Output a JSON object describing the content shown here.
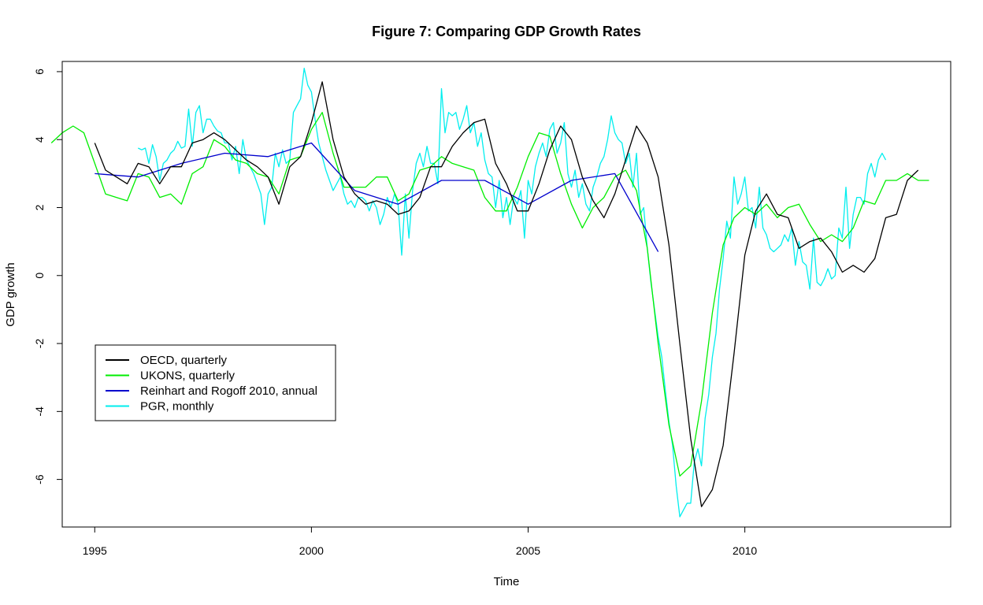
{
  "chart_data": {
    "type": "line",
    "title": "Figure 7: Comparing GDP Growth Rates",
    "xlabel": "Time",
    "ylabel": "GDP growth",
    "xlim": [
      1994.25,
      2014.75
    ],
    "ylim": [
      -7.4,
      6.3
    ],
    "x_ticks": [
      1995,
      2000,
      2005,
      2010
    ],
    "y_ticks": [
      -6,
      -4,
      -2,
      0,
      2,
      4,
      6
    ],
    "grid": false,
    "legend_position": "bottom-left",
    "series": [
      {
        "name": "OECD, quarterly",
        "color": "#000000",
        "start": 1995.0,
        "step": 0.25,
        "values": [
          3.9,
          3.1,
          2.9,
          2.7,
          3.3,
          3.2,
          2.7,
          3.2,
          3.2,
          3.9,
          4.0,
          4.2,
          4.0,
          3.7,
          3.4,
          3.2,
          2.9,
          2.1,
          3.2,
          3.5,
          4.5,
          5.7,
          4.0,
          2.9,
          2.4,
          2.1,
          2.2,
          2.1,
          1.8,
          1.9,
          2.3,
          3.2,
          3.2,
          3.8,
          4.2,
          4.5,
          4.6,
          3.3,
          2.7,
          1.9,
          1.9,
          2.7,
          3.7,
          4.4,
          4.0,
          2.9,
          2.2,
          1.7,
          2.4,
          3.4,
          4.4,
          3.9,
          2.9,
          0.9,
          -2.0,
          -4.8,
          -6.8,
          -6.3,
          -5.0,
          -2.3,
          0.6,
          1.9,
          2.4,
          1.8,
          1.7,
          0.8,
          1.0,
          1.1,
          0.7,
          0.1,
          0.3,
          0.1,
          0.5,
          1.7,
          1.8,
          2.8,
          3.1
        ]
      },
      {
        "name": "UKONS, quarterly",
        "color": "#00ee00",
        "start": 1994.0,
        "step": 0.25,
        "values": [
          3.9,
          4.2,
          4.4,
          4.2,
          3.3,
          2.4,
          2.3,
          2.2,
          3.0,
          2.9,
          2.3,
          2.4,
          2.1,
          3.0,
          3.2,
          4.0,
          3.8,
          3.4,
          3.3,
          3.0,
          2.9,
          2.4,
          3.4,
          3.5,
          4.3,
          4.8,
          3.6,
          2.6,
          2.6,
          2.6,
          2.9,
          2.9,
          2.2,
          2.4,
          3.1,
          3.2,
          3.5,
          3.3,
          3.2,
          3.1,
          2.3,
          1.9,
          1.9,
          2.6,
          3.5,
          4.2,
          4.1,
          3.0,
          2.1,
          1.4,
          2.0,
          2.3,
          2.9,
          3.1,
          2.5,
          0.8,
          -2.0,
          -4.4,
          -5.9,
          -5.6,
          -3.7,
          -1.1,
          0.9,
          1.7,
          2.0,
          1.8,
          2.1,
          1.7,
          2.0,
          2.1,
          1.5,
          1.0,
          1.2,
          1.0,
          1.4,
          2.2,
          2.1,
          2.8,
          2.8,
          3.0,
          2.8,
          2.8
        ]
      },
      {
        "name": "Reinhart and Rogoff 2010, annual",
        "color": "#0000cd",
        "x": [
          1995,
          1996,
          1997,
          1998,
          1999,
          2000,
          2001,
          2002,
          2003,
          2004,
          2005,
          2006,
          2007,
          2008
        ],
        "values": [
          3.0,
          2.9,
          3.3,
          3.6,
          3.5,
          3.9,
          2.5,
          2.1,
          2.8,
          2.8,
          2.1,
          2.8,
          3.0,
          0.7
        ]
      },
      {
        "name": "PGR, monthly",
        "color": "#00eeee",
        "start": 1996.0,
        "step": 0.0833333,
        "values": [
          3.75,
          3.7,
          3.75,
          3.3,
          3.85,
          3.5,
          2.8,
          3.3,
          3.4,
          3.6,
          3.7,
          3.95,
          3.75,
          3.8,
          4.9,
          3.8,
          4.8,
          5.0,
          4.2,
          4.6,
          4.6,
          4.4,
          4.25,
          4.2,
          3.9,
          3.9,
          3.4,
          3.8,
          3.0,
          4.0,
          3.4,
          3.2,
          3.0,
          2.7,
          2.4,
          1.5,
          2.4,
          2.6,
          3.6,
          3.2,
          3.7,
          3.3,
          3.4,
          4.8,
          5.0,
          5.2,
          6.1,
          5.6,
          5.4,
          4.6,
          3.9,
          3.5,
          3.1,
          2.8,
          2.5,
          2.7,
          2.9,
          2.4,
          2.1,
          2.2,
          2.0,
          2.3,
          2.3,
          2.2,
          1.9,
          2.2,
          2.0,
          1.5,
          1.8,
          2.3,
          2.0,
          2.4,
          2.1,
          0.6,
          2.4,
          1.1,
          2.5,
          3.3,
          3.6,
          3.2,
          3.8,
          3.3,
          3.3,
          2.7,
          5.5,
          4.2,
          4.8,
          4.7,
          4.8,
          4.3,
          4.6,
          5.0,
          4.2,
          4.5,
          3.8,
          4.2,
          3.4,
          3.0,
          2.9,
          2.0,
          2.8,
          1.7,
          2.3,
          1.5,
          2.3,
          2.1,
          2.5,
          1.1,
          2.8,
          2.4,
          3.2,
          3.6,
          3.9,
          3.5,
          4.3,
          4.5,
          3.6,
          3.9,
          4.5,
          3.0,
          2.6,
          3.1,
          2.3,
          2.7,
          2.1,
          1.9,
          2.6,
          2.9,
          3.3,
          3.5,
          4.0,
          4.7,
          4.2,
          4.0,
          3.9,
          3.3,
          3.6,
          2.6,
          3.6,
          1.8,
          2.0,
          0.8,
          -0.2,
          -1.0,
          -1.8,
          -2.4,
          -3.4,
          -4.3,
          -5.0,
          -6.2,
          -7.1,
          -6.9,
          -6.7,
          -6.7,
          -5.5,
          -5.1,
          -5.6,
          -4.2,
          -3.5,
          -2.4,
          -1.7,
          -0.4,
          0.5,
          1.6,
          1.1,
          2.9,
          2.1,
          2.4,
          2.9,
          1.9,
          2.0,
          1.4,
          2.6,
          1.4,
          1.2,
          0.8,
          0.7,
          0.8,
          0.9,
          1.2,
          1.0,
          1.4,
          0.3,
          1.0,
          0.4,
          0.3,
          -0.4,
          1.1,
          -0.2,
          -0.3,
          -0.1,
          0.2,
          -0.1,
          0.0,
          1.4,
          1.1,
          2.6,
          0.8,
          1.8,
          2.3,
          2.3,
          2.1,
          3.0,
          3.3,
          2.9,
          3.4,
          3.6,
          3.4
        ]
      }
    ]
  }
}
